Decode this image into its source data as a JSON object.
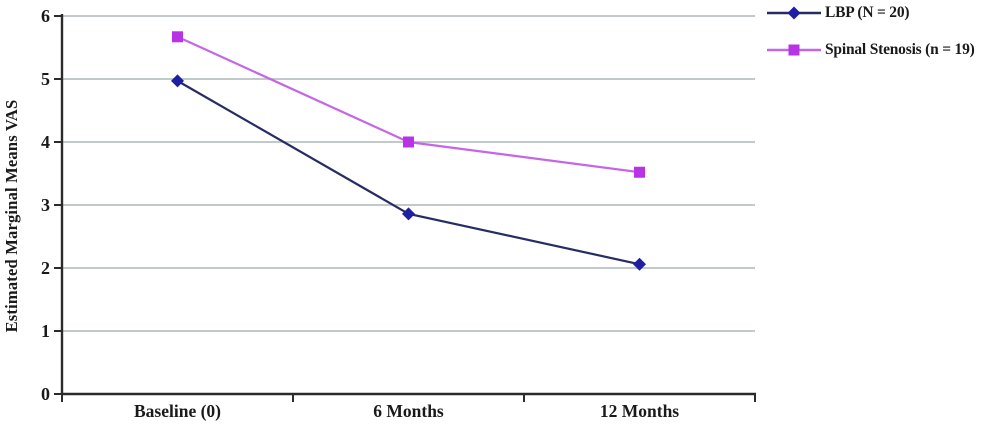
{
  "chart_data": {
    "type": "line",
    "title": "",
    "xlabel": "",
    "ylabel": "Estimated Marginal Means VAS",
    "categories": [
      "Baseline (0)",
      "6 Months",
      "12 Months"
    ],
    "ylim": [
      0,
      6
    ],
    "yticks": [
      0,
      1,
      2,
      3,
      4,
      5,
      6
    ],
    "grid": "horizontal-gridlines-on",
    "legend_position": "top-right-outside",
    "colors": {
      "axis": "#2b2b2b",
      "gridline": "#b8c2c2",
      "text": "#1a1a1a",
      "background": "#ffffff"
    },
    "series": [
      {
        "name": "LBP (N = 20)",
        "marker": "diamond",
        "line_color": "#272c63",
        "marker_color": "#1f1fa6",
        "values": [
          4.97,
          2.86,
          2.06
        ]
      },
      {
        "name": "Spinal Stenosis (n = 19)",
        "marker": "square",
        "line_color": "#c566e6",
        "marker_color": "#b833e6",
        "values": [
          5.67,
          4.0,
          3.52
        ]
      }
    ]
  }
}
